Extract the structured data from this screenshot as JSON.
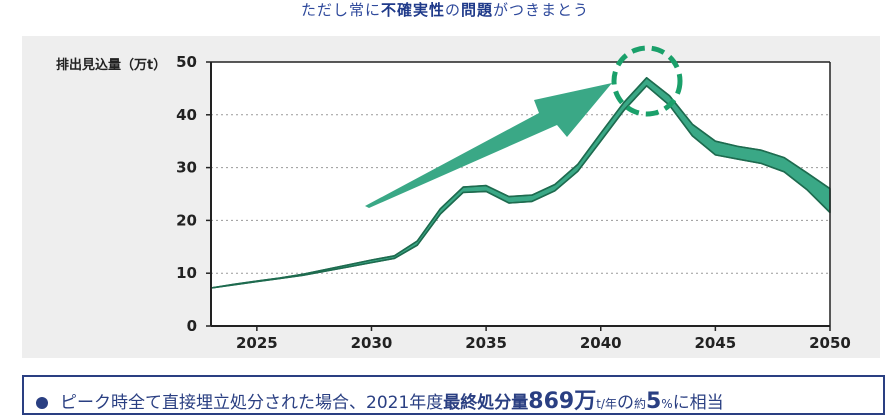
{
  "header": {
    "subtitle_parts": [
      {
        "text": "ただし常に",
        "em": false
      },
      {
        "text": "不確実性",
        "em": true
      },
      {
        "text": "の",
        "em": false
      },
      {
        "text": "問題",
        "em": true
      },
      {
        "text": "がつきまとう",
        "em": false
      }
    ]
  },
  "chart_data": {
    "type": "area",
    "title": "",
    "ylabel": "排出見込量（万t）",
    "xlabel": "",
    "xlim": [
      2023,
      2050
    ],
    "ylim": [
      0,
      50
    ],
    "y_ticks": [
      0,
      10,
      20,
      30,
      40,
      50
    ],
    "x_ticks": [
      2025,
      2030,
      2035,
      2040,
      2045,
      2050
    ],
    "grid": "horizontal-dotted",
    "fill_color": "#3aa886",
    "x": [
      2023,
      2024,
      2025,
      2026,
      2027,
      2028,
      2029,
      2030,
      2031,
      2032,
      2033,
      2034,
      2035,
      2036,
      2037,
      2038,
      2039,
      2040,
      2041,
      2042,
      2043,
      2044,
      2045,
      2046,
      2047,
      2048,
      2049,
      2050
    ],
    "series": [
      {
        "values": [
          7.2,
          7.8,
          8.4,
          9.0,
          9.6,
          10.4,
          11.2,
          12.0,
          12.8,
          15.3,
          21.2,
          25.3,
          25.5,
          23.3,
          23.6,
          25.6,
          29.3,
          35.0,
          40.8,
          45.5,
          41.8,
          36.0,
          32.4,
          31.6,
          30.8,
          29.2,
          25.8,
          21.5
        ]
      },
      {
        "values": [
          7.2,
          7.9,
          8.5,
          9.1,
          9.8,
          10.7,
          11.6,
          12.5,
          13.3,
          16.1,
          22.2,
          26.3,
          26.6,
          24.5,
          24.8,
          26.8,
          30.6,
          36.5,
          42.3,
          47.0,
          43.6,
          38.2,
          35.0,
          34.0,
          33.3,
          31.9,
          29.0,
          26.0
        ]
      }
    ],
    "annotations": [
      {
        "type": "arrow",
        "direction": "up-right",
        "color": "#3aa886"
      },
      {
        "type": "dashed-circle",
        "target_x": 2042,
        "color": "#1aa06a"
      }
    ]
  },
  "footer": {
    "parts": [
      {
        "text": "ピーク時全て直接埋立処分された場合、2021年度",
        "style": ""
      },
      {
        "text": "最終処分量",
        "style": "strong"
      },
      {
        "text": "869万",
        "style": "big"
      },
      {
        "text": "t/年",
        "style": "small"
      },
      {
        "text": "の",
        "style": ""
      },
      {
        "text": "約",
        "style": "small"
      },
      {
        "text": "5",
        "style": "big"
      },
      {
        "text": "%",
        "style": "small"
      },
      {
        "text": "に相当",
        "style": ""
      }
    ]
  }
}
